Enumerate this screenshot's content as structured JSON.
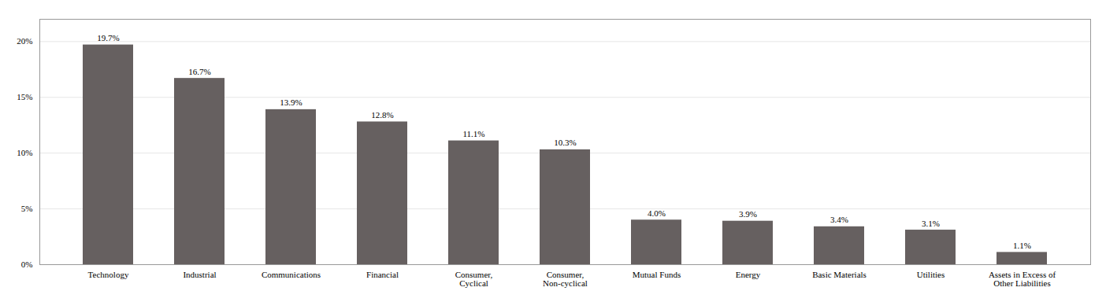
{
  "chart_data": {
    "type": "bar",
    "categories": [
      "Technology",
      "Industrial",
      "Communications",
      "Financial",
      "Consumer,\nCyclical",
      "Consumer,\nNon-cyclical",
      "Mutual Funds",
      "Energy",
      "Basic Materials",
      "Utilities",
      "Assets in Excess of\nOther Liabilities"
    ],
    "values": [
      19.7,
      16.7,
      13.9,
      12.8,
      11.1,
      10.3,
      4.0,
      3.9,
      3.4,
      3.1,
      1.1
    ],
    "value_labels": [
      "19.7%",
      "16.7%",
      "13.9%",
      "12.8%",
      "11.1%",
      "10.3%",
      "4.0%",
      "3.9%",
      "3.4%",
      "3.1%",
      "1.1%"
    ],
    "color": "#666060",
    "ylim": [
      0,
      22
    ],
    "yticks": [
      {
        "value": 0,
        "label": "0%"
      },
      {
        "value": 5,
        "label": "5%"
      },
      {
        "value": 10,
        "label": "10%"
      },
      {
        "value": 15,
        "label": "15%"
      },
      {
        "value": 20,
        "label": "20%"
      }
    ],
    "grid": true,
    "data_labels": true
  }
}
